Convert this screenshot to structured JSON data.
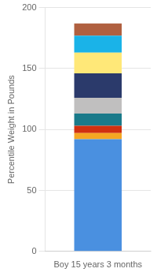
{
  "chart_data": {
    "type": "bar",
    "stacked": true,
    "categories": [
      "Boy 15 years 3 months"
    ],
    "ylabel": "Percentile Weight in Pounds",
    "series": [
      {
        "color": "#4a90e0",
        "values": [
          92
        ]
      },
      {
        "color": "#f5a623",
        "values": [
          5
        ]
      },
      {
        "color": "#d03010",
        "values": [
          6
        ]
      },
      {
        "color": "#1a7a8a",
        "values": [
          10
        ]
      },
      {
        "color": "#c0bfbf",
        "values": [
          13
        ]
      },
      {
        "color": "#2b3a6b",
        "values": [
          20
        ]
      },
      {
        "color": "#ffe878",
        "values": [
          17
        ]
      },
      {
        "color": "#1ab3e8",
        "values": [
          14
        ]
      },
      {
        "color": "#b06040",
        "values": [
          10
        ]
      }
    ],
    "ylim": [
      0,
      200
    ],
    "yticks": [
      0,
      50,
      100,
      150,
      200
    ],
    "grid": true
  }
}
